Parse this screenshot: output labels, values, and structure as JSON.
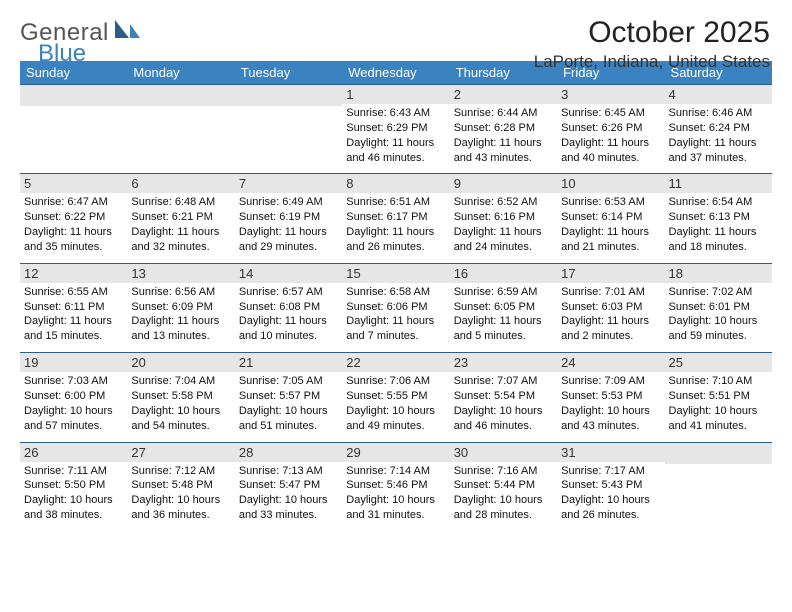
{
  "logo": {
    "part1": "General",
    "part2": "Blue"
  },
  "title": "October 2025",
  "location": "LaPorte, Indiana, United States",
  "colors": {
    "header_bg": "#3b83c0",
    "header_fg": "#ffffff",
    "daynum_bg": "#e6e6e6",
    "row_rule": "#2b5e88",
    "text": "#111111",
    "title": "#222222"
  },
  "typography": {
    "title_fontsize": 30,
    "location_fontsize": 17,
    "header_fontsize": 13,
    "daynum_fontsize": 13,
    "body_fontsize": 11
  },
  "calendar": {
    "type": "table",
    "columns": [
      "Sunday",
      "Monday",
      "Tuesday",
      "Wednesday",
      "Thursday",
      "Friday",
      "Saturday"
    ],
    "weeks": [
      [
        null,
        null,
        null,
        {
          "n": "1",
          "sr": "6:43 AM",
          "ss": "6:29 PM",
          "dl": "11 hours and 46 minutes."
        },
        {
          "n": "2",
          "sr": "6:44 AM",
          "ss": "6:28 PM",
          "dl": "11 hours and 43 minutes."
        },
        {
          "n": "3",
          "sr": "6:45 AM",
          "ss": "6:26 PM",
          "dl": "11 hours and 40 minutes."
        },
        {
          "n": "4",
          "sr": "6:46 AM",
          "ss": "6:24 PM",
          "dl": "11 hours and 37 minutes."
        }
      ],
      [
        {
          "n": "5",
          "sr": "6:47 AM",
          "ss": "6:22 PM",
          "dl": "11 hours and 35 minutes."
        },
        {
          "n": "6",
          "sr": "6:48 AM",
          "ss": "6:21 PM",
          "dl": "11 hours and 32 minutes."
        },
        {
          "n": "7",
          "sr": "6:49 AM",
          "ss": "6:19 PM",
          "dl": "11 hours and 29 minutes."
        },
        {
          "n": "8",
          "sr": "6:51 AM",
          "ss": "6:17 PM",
          "dl": "11 hours and 26 minutes."
        },
        {
          "n": "9",
          "sr": "6:52 AM",
          "ss": "6:16 PM",
          "dl": "11 hours and 24 minutes."
        },
        {
          "n": "10",
          "sr": "6:53 AM",
          "ss": "6:14 PM",
          "dl": "11 hours and 21 minutes."
        },
        {
          "n": "11",
          "sr": "6:54 AM",
          "ss": "6:13 PM",
          "dl": "11 hours and 18 minutes."
        }
      ],
      [
        {
          "n": "12",
          "sr": "6:55 AM",
          "ss": "6:11 PM",
          "dl": "11 hours and 15 minutes."
        },
        {
          "n": "13",
          "sr": "6:56 AM",
          "ss": "6:09 PM",
          "dl": "11 hours and 13 minutes."
        },
        {
          "n": "14",
          "sr": "6:57 AM",
          "ss": "6:08 PM",
          "dl": "11 hours and 10 minutes."
        },
        {
          "n": "15",
          "sr": "6:58 AM",
          "ss": "6:06 PM",
          "dl": "11 hours and 7 minutes."
        },
        {
          "n": "16",
          "sr": "6:59 AM",
          "ss": "6:05 PM",
          "dl": "11 hours and 5 minutes."
        },
        {
          "n": "17",
          "sr": "7:01 AM",
          "ss": "6:03 PM",
          "dl": "11 hours and 2 minutes."
        },
        {
          "n": "18",
          "sr": "7:02 AM",
          "ss": "6:01 PM",
          "dl": "10 hours and 59 minutes."
        }
      ],
      [
        {
          "n": "19",
          "sr": "7:03 AM",
          "ss": "6:00 PM",
          "dl": "10 hours and 57 minutes."
        },
        {
          "n": "20",
          "sr": "7:04 AM",
          "ss": "5:58 PM",
          "dl": "10 hours and 54 minutes."
        },
        {
          "n": "21",
          "sr": "7:05 AM",
          "ss": "5:57 PM",
          "dl": "10 hours and 51 minutes."
        },
        {
          "n": "22",
          "sr": "7:06 AM",
          "ss": "5:55 PM",
          "dl": "10 hours and 49 minutes."
        },
        {
          "n": "23",
          "sr": "7:07 AM",
          "ss": "5:54 PM",
          "dl": "10 hours and 46 minutes."
        },
        {
          "n": "24",
          "sr": "7:09 AM",
          "ss": "5:53 PM",
          "dl": "10 hours and 43 minutes."
        },
        {
          "n": "25",
          "sr": "7:10 AM",
          "ss": "5:51 PM",
          "dl": "10 hours and 41 minutes."
        }
      ],
      [
        {
          "n": "26",
          "sr": "7:11 AM",
          "ss": "5:50 PM",
          "dl": "10 hours and 38 minutes."
        },
        {
          "n": "27",
          "sr": "7:12 AM",
          "ss": "5:48 PM",
          "dl": "10 hours and 36 minutes."
        },
        {
          "n": "28",
          "sr": "7:13 AM",
          "ss": "5:47 PM",
          "dl": "10 hours and 33 minutes."
        },
        {
          "n": "29",
          "sr": "7:14 AM",
          "ss": "5:46 PM",
          "dl": "10 hours and 31 minutes."
        },
        {
          "n": "30",
          "sr": "7:16 AM",
          "ss": "5:44 PM",
          "dl": "10 hours and 28 minutes."
        },
        {
          "n": "31",
          "sr": "7:17 AM",
          "ss": "5:43 PM",
          "dl": "10 hours and 26 minutes."
        },
        null
      ]
    ],
    "labels": {
      "sunrise": "Sunrise:",
      "sunset": "Sunset:",
      "daylight": "Daylight:"
    }
  }
}
